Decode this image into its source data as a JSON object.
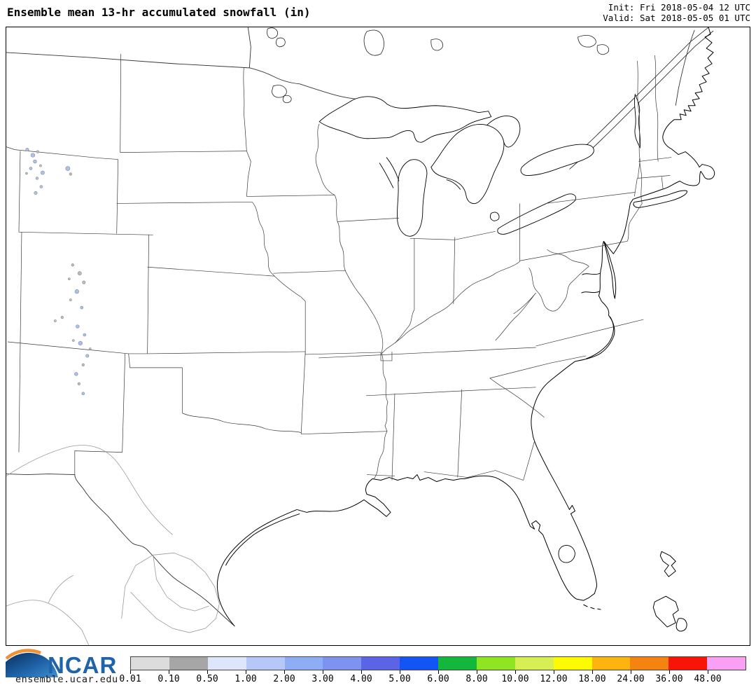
{
  "header": {
    "title": "Ensemble mean 13-hr accumulated snowfall (in)",
    "init_label": "Init: Fri 2018-05-04 12 UTC",
    "valid_label": "Valid: Sat 2018-05-05 01 UTC"
  },
  "branding": {
    "logo_text": "NCAR",
    "site_url": "ensemble.ucar.edu",
    "logo_blue": "#1f63a8",
    "logo_orange": "#f29035"
  },
  "map": {
    "region": "Central and Eastern United States",
    "snow_regions": [
      {
        "name": "wyoming-rockies",
        "approx_range_in": "0.01-1.00"
      },
      {
        "name": "colorado-rockies",
        "approx_range_in": "0.01-1.00"
      }
    ]
  },
  "chart_data": {
    "type": "heatmap",
    "title": "Ensemble mean 13-hr accumulated snowfall (in)",
    "units": "in",
    "legend_position": "bottom",
    "colorbar": {
      "labels": [
        "0.01",
        "0.10",
        "0.50",
        "1.00",
        "2.00",
        "3.00",
        "4.00",
        "5.00",
        "6.00",
        "8.00",
        "10.00",
        "12.00",
        "18.00",
        "24.00",
        "36.00",
        "48.00"
      ],
      "colors": [
        "#dcdcdc",
        "#a6a6a6",
        "#dde6fb",
        "#b5c8f7",
        "#8fadf4",
        "#7e93f0",
        "#5c64e6",
        "#1355f4",
        "#12b73c",
        "#8fe522",
        "#d7ef54",
        "#fdfb02",
        "#fdb40f",
        "#f5830f",
        "#f81407",
        "#f9a0f4"
      ]
    }
  }
}
